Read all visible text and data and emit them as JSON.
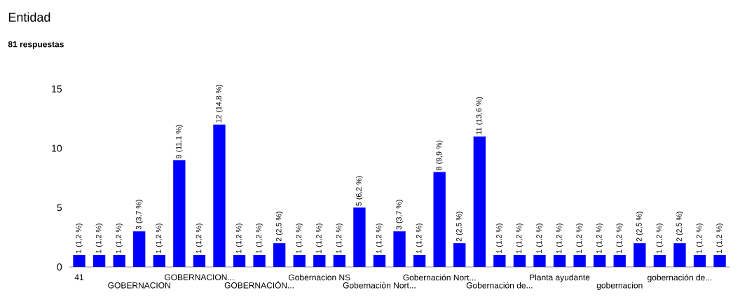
{
  "chart_data": {
    "type": "bar",
    "title": "Entidad",
    "subtitle": "81 respuestas",
    "categories": [
      "41",
      null,
      null,
      "GOBERNACION",
      null,
      null,
      "GOBERNACION...",
      null,
      null,
      "GOBERNACIÓN...",
      null,
      null,
      "Gobernacion NS",
      null,
      null,
      "Gobernaciòn Nort...",
      null,
      null,
      "Gobernación Nort...",
      null,
      null,
      "Gobernación de...",
      null,
      null,
      "Planta ayudante",
      null,
      null,
      "gobernacion",
      null,
      null,
      "gobernación de...",
      null,
      null
    ],
    "values": [
      1,
      1,
      1,
      3,
      1,
      9,
      1,
      12,
      1,
      1,
      2,
      1,
      1,
      1,
      5,
      1,
      3,
      1,
      8,
      2,
      11,
      1,
      1,
      1,
      1,
      1,
      1,
      1,
      2,
      1,
      2,
      1,
      1
    ],
    "value_labels": [
      "1 (1,2 %)",
      "1 (1,2 %)",
      "1 (1,2 %)",
      "3 (3,7 %)",
      "1 (1,2 %)",
      "9 (11,1 %)",
      "1 (1,2 %)",
      "12 (14,8 %)",
      "1 (1,2 %)",
      "1 (1,2 %)",
      "2 (2,5 %)",
      "1 (1,2 %)",
      "1 (1,2 %)",
      "1 (1,2 %)",
      "5 (6,2 %)",
      "1 (1,2 %)",
      "3 (3,7 %)",
      "1 (1,2 %)",
      "8 (9,9 %)",
      "2 (2,5 %)",
      "11 (13,6 %)",
      "1 (1,2 %)",
      "1 (1,2 %)",
      "1 (1,2 %)",
      "1 (1,2 %)",
      "1 (1,2 %)",
      "1 (1,2 %)",
      "1 (1,2 %)",
      "2 (2,5 %)",
      "1 (1,2 %)",
      "2 (2,5 %)",
      "1 (1,2 %)",
      "1 (1,2 %)"
    ],
    "color": "#0000ff",
    "ylim": [
      0,
      15
    ],
    "yticks": [
      0,
      5,
      10,
      15
    ]
  }
}
